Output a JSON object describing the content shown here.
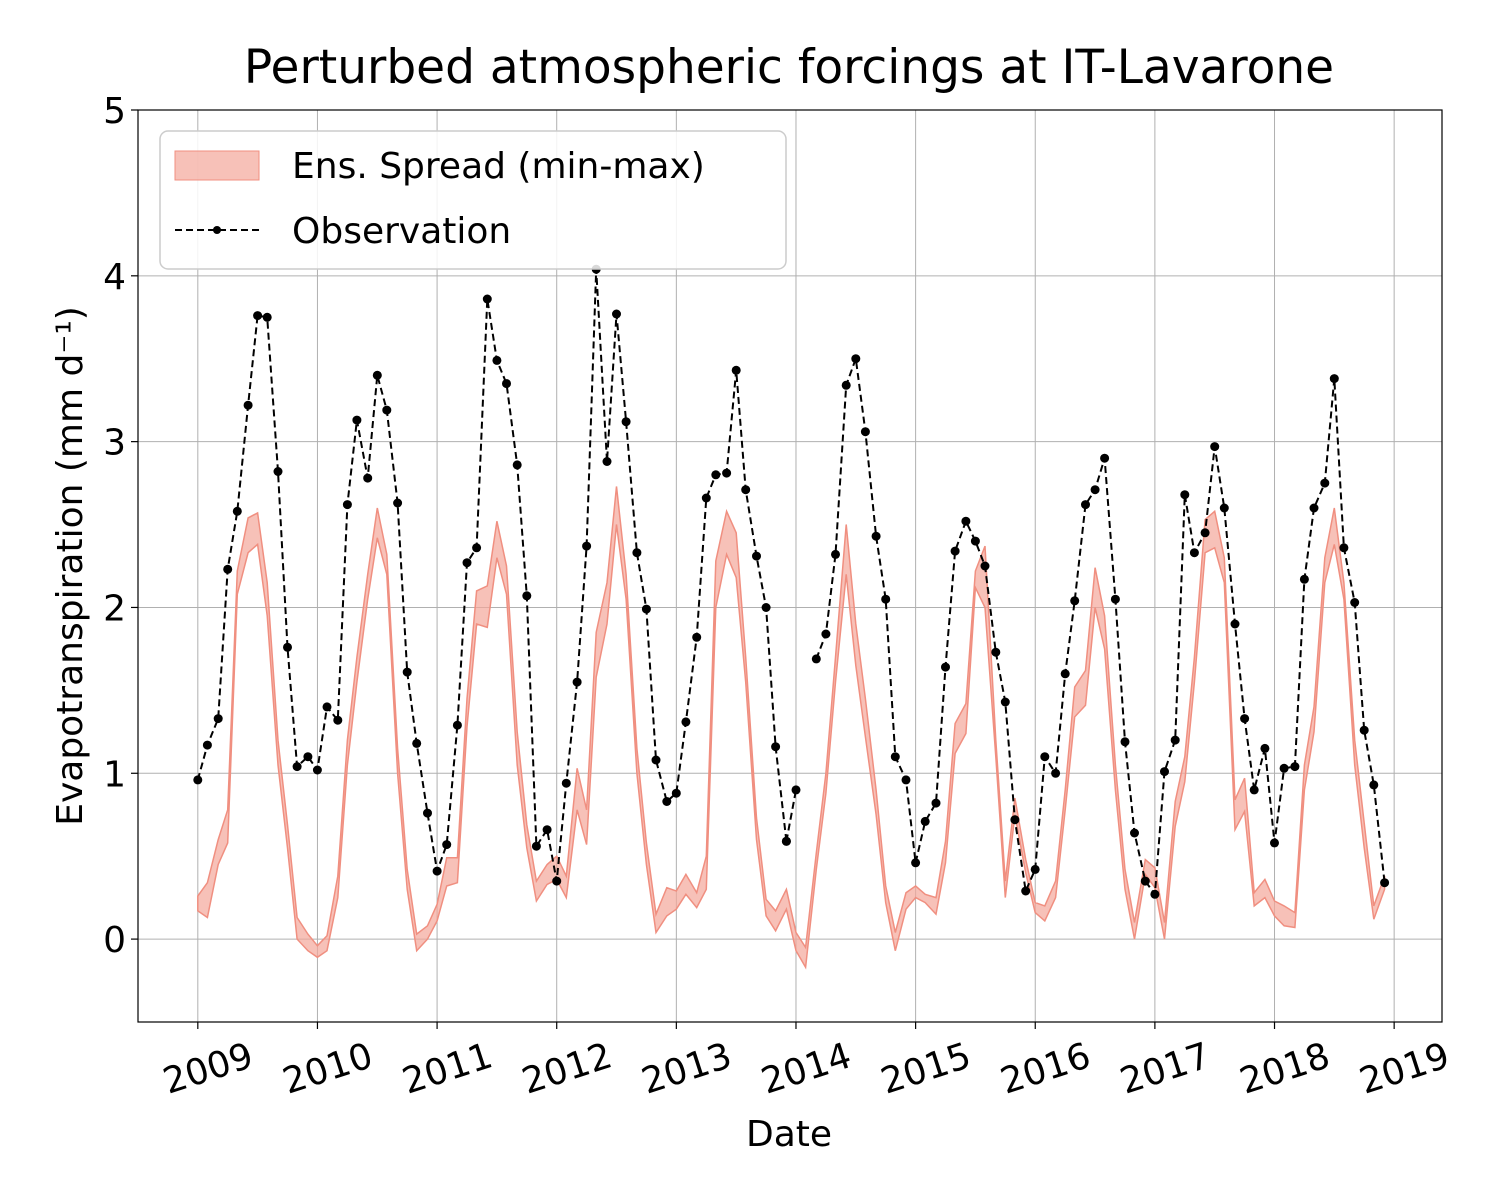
{
  "chart_data": {
    "type": "line",
    "title": "Perturbed atmospheric forcings at IT-Lavarone",
    "xlabel": "Date",
    "ylabel": "Evapotranspiration  (mm d⁻¹)",
    "xlim": [
      2008.5,
      2019.4
    ],
    "ylim": [
      -0.5,
      5
    ],
    "x_ticks": [
      2009,
      2010,
      2011,
      2012,
      2013,
      2014,
      2015,
      2016,
      2017,
      2018,
      2019
    ],
    "x_tick_labels": [
      "2009",
      "2010",
      "2011",
      "2012",
      "2013",
      "2014",
      "2015",
      "2016",
      "2017",
      "2018",
      "2019"
    ],
    "y_ticks": [
      0,
      1,
      2,
      3,
      4,
      5
    ],
    "y_tick_labels": [
      "0",
      "1",
      "2",
      "3",
      "4",
      "5"
    ],
    "grid": true,
    "legend_position": "top-left",
    "legend": [
      "Ens. Spread (min-max)",
      "Observation"
    ],
    "colors": {
      "spread_fill": "#f4a79a",
      "spread_edge": "#f08f80",
      "observation": "#000000"
    },
    "series": [
      {
        "name": "Ens. Spread (min-max)",
        "kind": "band",
        "x": [
          2009.0,
          2009.08,
          2009.17,
          2009.25,
          2009.33,
          2009.42,
          2009.5,
          2009.58,
          2009.67,
          2009.75,
          2009.83,
          2009.92,
          2010.0,
          2010.08,
          2010.17,
          2010.25,
          2010.33,
          2010.42,
          2010.5,
          2010.58,
          2010.67,
          2010.75,
          2010.83,
          2010.92,
          2011.0,
          2011.08,
          2011.17,
          2011.25,
          2011.33,
          2011.42,
          2011.5,
          2011.58,
          2011.67,
          2011.75,
          2011.83,
          2011.92,
          2012.0,
          2012.08,
          2012.17,
          2012.25,
          2012.33,
          2012.42,
          2012.5,
          2012.58,
          2012.67,
          2012.75,
          2012.83,
          2012.92,
          2013.0,
          2013.08,
          2013.17,
          2013.25,
          2013.33,
          2013.42,
          2013.5,
          2013.58,
          2013.67,
          2013.75,
          2013.83,
          2013.92,
          2014.0,
          2014.08,
          2014.17,
          2014.25,
          2014.33,
          2014.42,
          2014.5,
          2014.58,
          2014.67,
          2014.75,
          2014.83,
          2014.92,
          2015.0,
          2015.08,
          2015.17,
          2015.25,
          2015.33,
          2015.42,
          2015.5,
          2015.58,
          2015.67,
          2015.75,
          2015.83,
          2015.92,
          2016.0,
          2016.08,
          2016.17,
          2016.25,
          2016.33,
          2016.42,
          2016.5,
          2016.58,
          2016.67,
          2016.75,
          2016.83,
          2016.92,
          2017.0,
          2017.08,
          2017.17,
          2017.25,
          2017.33,
          2017.42,
          2017.5,
          2017.58,
          2017.67,
          2017.75,
          2017.83,
          2017.92,
          2018.0,
          2018.08,
          2018.17,
          2018.25,
          2018.33,
          2018.42,
          2018.5,
          2018.58,
          2018.67,
          2018.75,
          2018.83,
          2018.92
        ],
        "min": [
          0.17,
          0.13,
          0.45,
          0.58,
          2.08,
          2.33,
          2.38,
          1.95,
          1.05,
          0.55,
          0.0,
          -0.07,
          -0.11,
          -0.07,
          0.25,
          1.05,
          1.55,
          2.05,
          2.42,
          2.2,
          1.0,
          0.3,
          -0.07,
          0.0,
          0.11,
          0.32,
          0.34,
          1.28,
          1.9,
          1.88,
          2.3,
          2.08,
          1.05,
          0.55,
          0.23,
          0.33,
          0.36,
          0.25,
          0.78,
          0.57,
          1.58,
          1.9,
          2.5,
          2.05,
          1.0,
          0.45,
          0.04,
          0.14,
          0.18,
          0.27,
          0.19,
          0.3,
          2.0,
          2.32,
          2.18,
          1.55,
          0.6,
          0.14,
          0.05,
          0.18,
          -0.07,
          -0.17,
          0.42,
          0.88,
          1.55,
          2.2,
          1.65,
          1.22,
          0.75,
          0.22,
          -0.07,
          0.18,
          0.25,
          0.22,
          0.15,
          0.46,
          1.12,
          1.24,
          2.12,
          2.0,
          1.1,
          0.25,
          0.75,
          0.4,
          0.16,
          0.11,
          0.25,
          0.78,
          1.34,
          1.41,
          2.0,
          1.75,
          0.9,
          0.3,
          0.0,
          0.39,
          0.31,
          0.0,
          0.68,
          0.95,
          1.55,
          2.33,
          2.36,
          2.15,
          0.66,
          0.77,
          0.2,
          0.25,
          0.14,
          0.08,
          0.07,
          0.9,
          1.25,
          2.15,
          2.38,
          2.05,
          1.05,
          0.55,
          0.12,
          0.3
        ],
        "max": [
          0.26,
          0.34,
          0.6,
          0.78,
          2.22,
          2.54,
          2.57,
          2.15,
          1.2,
          0.69,
          0.13,
          0.03,
          -0.04,
          0.02,
          0.38,
          1.2,
          1.7,
          2.2,
          2.6,
          2.32,
          1.15,
          0.42,
          0.03,
          0.08,
          0.21,
          0.49,
          0.49,
          1.45,
          2.1,
          2.13,
          2.52,
          2.25,
          1.25,
          0.69,
          0.35,
          0.45,
          0.5,
          0.38,
          1.03,
          0.78,
          1.85,
          2.15,
          2.73,
          2.2,
          1.15,
          0.58,
          0.15,
          0.31,
          0.29,
          0.39,
          0.28,
          0.5,
          2.28,
          2.58,
          2.45,
          1.7,
          0.73,
          0.24,
          0.17,
          0.3,
          0.04,
          -0.05,
          0.52,
          1.0,
          1.7,
          2.5,
          1.9,
          1.45,
          0.9,
          0.32,
          0.04,
          0.28,
          0.32,
          0.27,
          0.25,
          0.59,
          1.3,
          1.42,
          2.22,
          2.37,
          1.2,
          0.35,
          0.85,
          0.48,
          0.22,
          0.2,
          0.35,
          0.9,
          1.52,
          1.62,
          2.24,
          1.95,
          1.05,
          0.42,
          0.1,
          0.48,
          0.43,
          0.1,
          0.83,
          1.1,
          1.7,
          2.53,
          2.58,
          2.3,
          0.84,
          0.97,
          0.28,
          0.36,
          0.23,
          0.2,
          0.16,
          1.05,
          1.4,
          2.3,
          2.6,
          2.15,
          1.2,
          0.7,
          0.2,
          0.38
        ]
      },
      {
        "name": "Observation",
        "kind": "line",
        "segments": [
          {
            "x": [
              2009.0,
              2009.08,
              2009.17,
              2009.25,
              2009.33,
              2009.42,
              2009.5,
              2009.58,
              2009.67,
              2009.75,
              2009.83,
              2009.92,
              2010.0,
              2010.08,
              2010.17,
              2010.25,
              2010.33,
              2010.42,
              2010.5,
              2010.58,
              2010.67,
              2010.75,
              2010.83,
              2010.92,
              2011.0,
              2011.08,
              2011.17,
              2011.25,
              2011.33,
              2011.42,
              2011.5,
              2011.58,
              2011.67,
              2011.75,
              2011.83,
              2011.92,
              2012.0,
              2012.08,
              2012.17,
              2012.25,
              2012.33,
              2012.42,
              2012.5,
              2012.58,
              2012.67,
              2012.75,
              2012.83,
              2012.92,
              2013.0,
              2013.08,
              2013.17,
              2013.25,
              2013.33,
              2013.42,
              2013.5,
              2013.58,
              2013.67,
              2013.75,
              2013.83,
              2013.92
            ],
            "y": [
              0.96,
              1.17,
              1.33,
              2.23,
              2.58,
              3.22,
              3.76,
              3.75,
              2.82,
              1.76,
              1.04,
              1.1,
              1.02,
              1.4,
              1.32,
              2.62,
              3.13,
              2.78,
              3.4,
              3.19,
              2.63,
              1.61,
              1.18,
              0.76,
              0.41,
              0.57,
              1.29,
              2.27,
              2.36,
              3.86,
              3.49,
              3.35,
              2.86,
              2.07,
              0.56,
              0.66,
              0.35,
              0.94,
              1.55,
              2.37,
              4.04,
              2.88,
              3.77,
              3.12,
              2.33,
              1.99,
              1.08,
              0.83,
              0.88,
              1.31,
              1.82,
              2.66,
              2.8,
              2.81,
              3.43,
              2.71,
              2.31,
              2.0,
              1.16,
              0.59
            ]
          },
          {
            "x": [
              2013.92,
              2014.0
            ],
            "y": [
              0.59,
              0.9
            ]
          },
          {
            "x": [
              2014.17,
              2014.25,
              2014.33,
              2014.42,
              2014.5,
              2014.58,
              2014.67,
              2014.75,
              2014.83,
              2014.92,
              2015.0,
              2015.08,
              2015.17,
              2015.25,
              2015.33,
              2015.42,
              2015.5,
              2015.58,
              2015.67,
              2015.75,
              2015.83,
              2015.92,
              2016.0,
              2016.08,
              2016.17,
              2016.25,
              2016.33,
              2016.42,
              2016.5,
              2016.58,
              2016.67,
              2016.75,
              2016.83,
              2016.92,
              2017.0,
              2017.08,
              2017.17,
              2017.25,
              2017.33,
              2017.42,
              2017.5,
              2017.58,
              2017.67,
              2017.75,
              2017.83,
              2017.92,
              2018.0,
              2018.08,
              2018.17,
              2018.25,
              2018.33,
              2018.42,
              2018.5,
              2018.58,
              2018.67,
              2018.75,
              2018.83,
              2018.92
            ],
            "y": [
              1.69,
              1.84,
              2.32,
              3.34,
              3.5,
              3.06,
              2.43,
              2.05,
              1.1,
              0.96,
              0.46,
              0.71,
              0.82,
              1.64,
              2.34,
              2.52,
              2.4,
              2.25,
              1.73,
              1.43,
              0.72,
              0.29,
              0.42,
              1.1,
              1.0,
              1.6,
              2.04,
              2.62,
              2.71,
              2.9,
              2.05,
              1.19,
              0.64,
              0.35,
              0.27,
              1.01,
              1.2,
              2.68,
              2.33,
              2.45,
              2.97,
              2.6,
              1.9,
              1.33,
              0.9,
              1.15,
              0.58,
              1.03,
              1.04,
              2.17,
              2.6,
              2.75,
              3.38,
              2.36,
              2.03,
              1.26,
              0.93,
              0.34
            ]
          }
        ]
      }
    ]
  }
}
